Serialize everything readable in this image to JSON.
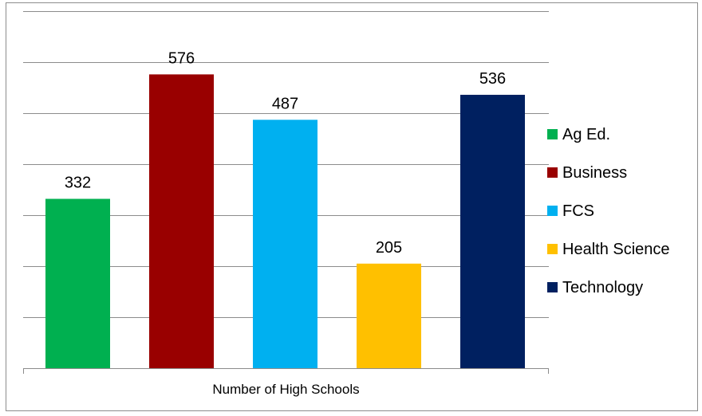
{
  "chart_data": {
    "type": "bar",
    "categories": [
      "Number of High Schools"
    ],
    "series": [
      {
        "name": "Ag Ed.",
        "values": [
          332
        ],
        "color": "#00b050"
      },
      {
        "name": "Business",
        "values": [
          576
        ],
        "color": "#990000"
      },
      {
        "name": "FCS",
        "values": [
          487
        ],
        "color": "#00b0f0"
      },
      {
        "name": "Health Science",
        "values": [
          205
        ],
        "color": "#ffc000"
      },
      {
        "name": "Technology",
        "values": [
          536
        ],
        "color": "#002060"
      }
    ],
    "title": "",
    "xlabel": "",
    "ylabel": "",
    "ylim": [
      0,
      700
    ],
    "gridlines": true,
    "data_labels": true,
    "legend_position": "right"
  }
}
